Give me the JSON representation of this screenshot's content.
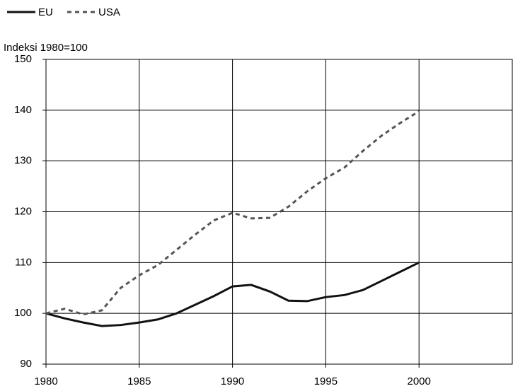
{
  "chart_data": {
    "type": "line",
    "y_label": "Indeksi 1980=100",
    "x": [
      1980,
      1981,
      1982,
      1983,
      1984,
      1985,
      1986,
      1987,
      1988,
      1989,
      1990,
      1991,
      1992,
      1993,
      1994,
      1995,
      1996,
      1997,
      1998,
      1999,
      2000
    ],
    "series": [
      {
        "name": "EU",
        "color": "#111111",
        "dash": "solid",
        "values": [
          100,
          99,
          98.2,
          97.5,
          97.7,
          98.2,
          98.8,
          100,
          101.7,
          103.4,
          105.3,
          105.6,
          104.3,
          102.5,
          102.4,
          103.2,
          103.6,
          104.6,
          106.4,
          108.2,
          110
        ]
      },
      {
        "name": "USA",
        "color": "#555555",
        "dash": "dashed",
        "values": [
          100,
          100.9,
          99.8,
          100.6,
          105,
          107.5,
          109.5,
          112.5,
          115.5,
          118.3,
          119.8,
          118.7,
          118.8,
          121,
          124,
          126.6,
          128.7,
          132,
          135,
          137.5,
          139.8
        ]
      }
    ],
    "xlim": [
      1980,
      2005
    ],
    "xticks": [
      1980,
      1985,
      1990,
      1995,
      2000
    ],
    "ylim": [
      90,
      150
    ],
    "yticks": [
      90,
      100,
      110,
      120,
      130,
      140,
      150
    ],
    "grid": true,
    "legend": "top-left"
  }
}
